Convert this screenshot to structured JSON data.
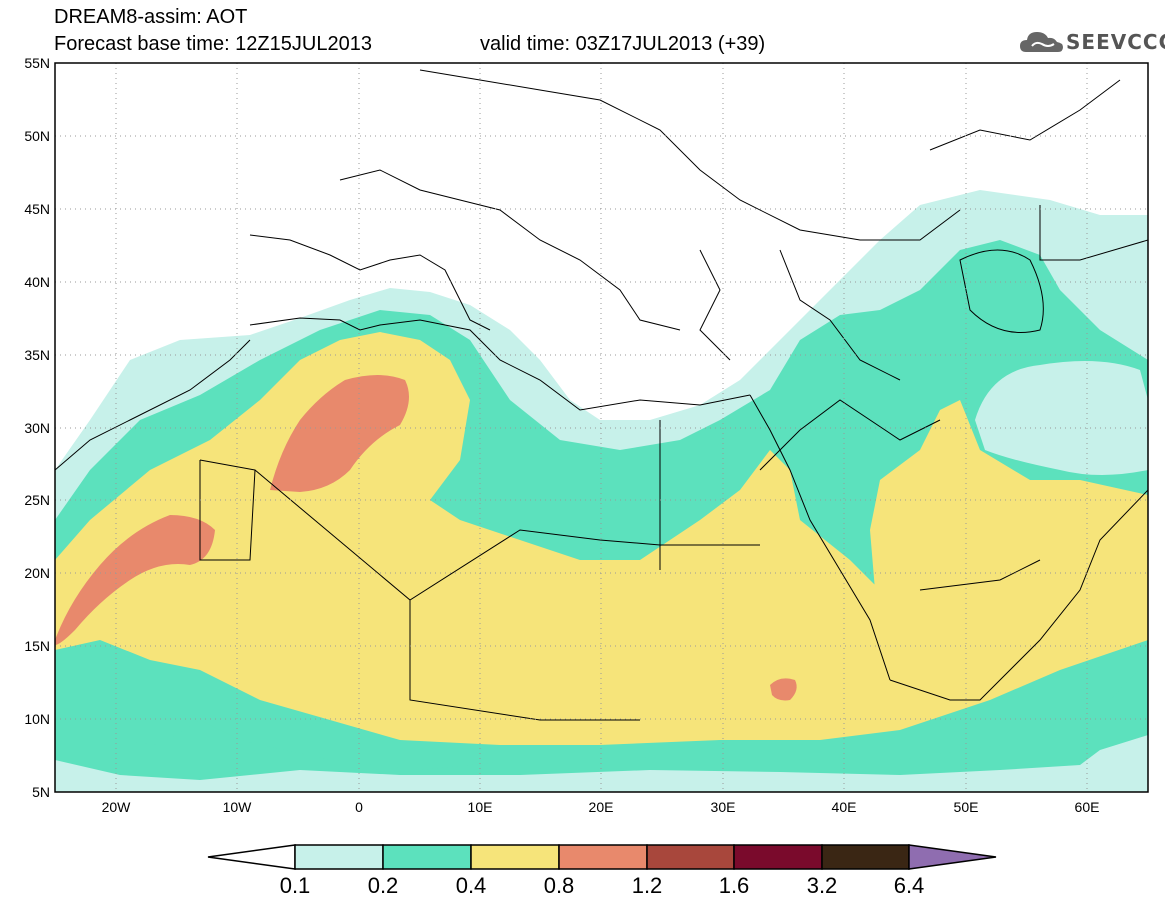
{
  "header": {
    "title": "DREAM8-assim: AOT",
    "base_time": "Forecast base time: 12Z15JUL2013",
    "valid_time": "valid time: 03Z17JUL2013 (+39)"
  },
  "logo": {
    "text": "SEEVCCC",
    "icon": "cloud-icon"
  },
  "map": {
    "lat_labels": [
      "55N",
      "50N",
      "45N",
      "40N",
      "35N",
      "30N",
      "25N",
      "20N",
      "15N",
      "10N",
      "5N"
    ],
    "lon_labels": [
      "20W",
      "10W",
      "0",
      "10E",
      "20E",
      "30E",
      "40E",
      "50E",
      "60E"
    ],
    "lon_range": [
      -25,
      65
    ],
    "lat_range": [
      5,
      55
    ]
  },
  "colorbar": {
    "labels": [
      "0.1",
      "0.2",
      "0.4",
      "0.8",
      "1.2",
      "1.6",
      "3.2",
      "6.4"
    ],
    "colors": [
      "#ffffff",
      "#c7f1ea",
      "#5ce1bd",
      "#f6e47a",
      "#e8896c",
      "#a8473c",
      "#7a0a2c",
      "#3a2614",
      "#8f6db0"
    ]
  },
  "colors": {
    "c01": "#c7f1ea",
    "c02": "#5ce1bd",
    "c04": "#f6e47a",
    "c08": "#e8896c"
  }
}
